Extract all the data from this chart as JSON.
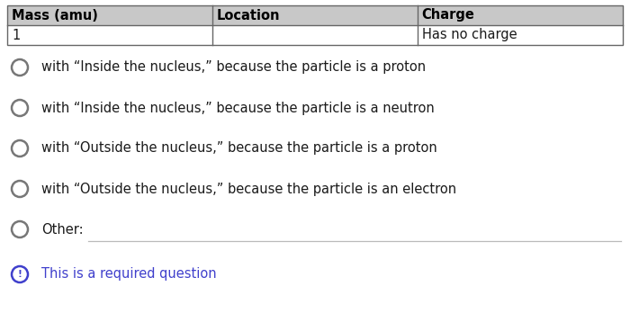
{
  "background_color": "#ffffff",
  "table_header_bg": "#c8c8c8",
  "table_border_color": "#666666",
  "table_headers": [
    "Mass (amu)",
    "Location",
    "Charge"
  ],
  "table_row": [
    "1",
    "",
    "Has no charge"
  ],
  "options": [
    "with “Inside the nucleus,” because the particle is a proton",
    "with “Inside the nucleus,” because the particle is a neutron",
    "with “Outside the nucleus,” because the particle is a proton",
    "with “Outside the nucleus,” because the particle is an electron",
    "Other:"
  ],
  "required_text": "This is a required question",
  "required_color": "#4040cc",
  "text_color": "#1a1a1a",
  "header_text_color": "#000000",
  "font_size": 10.5,
  "header_font_size": 10.5,
  "circle_edge_color": "#777777",
  "other_line_color": "#bbbbbb",
  "exclamation_color": "#4040cc",
  "fig_width": 7.0,
  "fig_height": 3.58,
  "dpi": 100
}
